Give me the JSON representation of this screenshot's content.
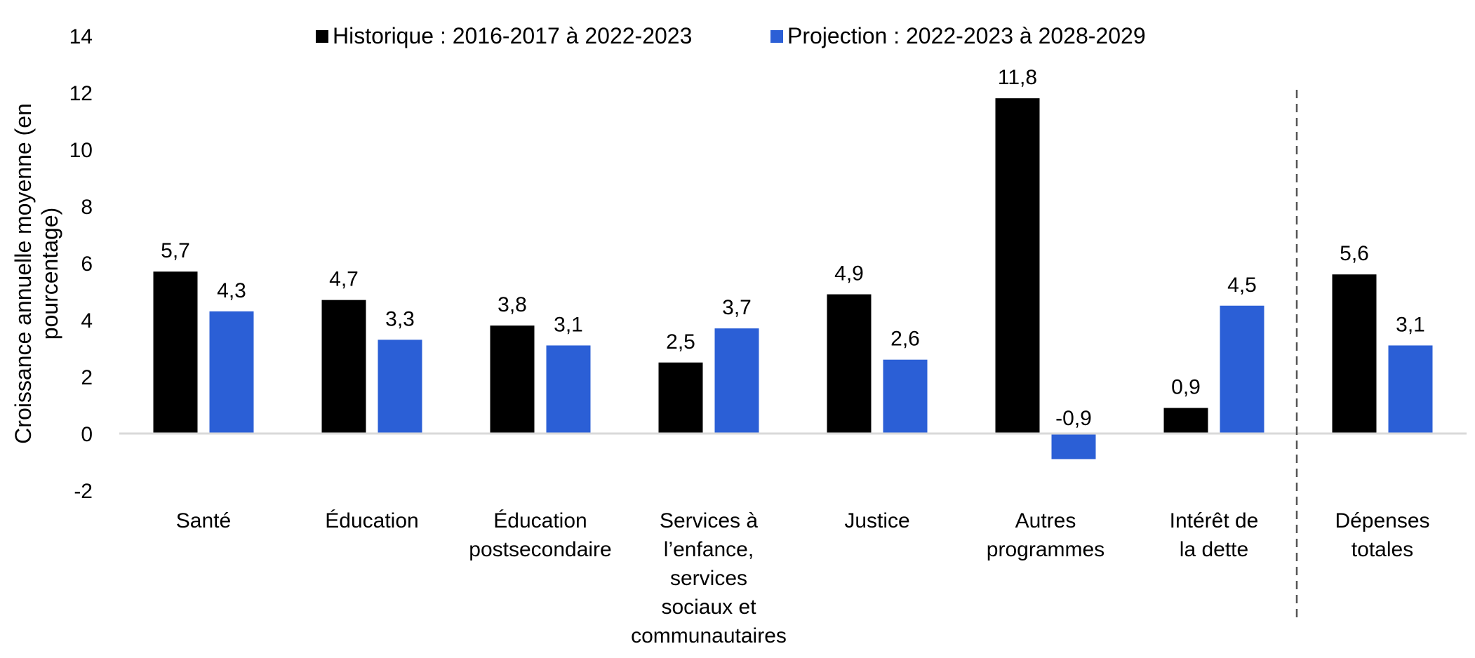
{
  "chart_data": {
    "type": "bar",
    "ylabel_lines": [
      "Croissance annuelle moyenne (en",
      "pourcentage)"
    ],
    "ylim": [
      -2,
      14
    ],
    "yticks": [
      "-2",
      "0",
      "2",
      "4",
      "6",
      "8",
      "10",
      "12",
      "14"
    ],
    "categories": [
      [
        "Santé"
      ],
      [
        "Éducation"
      ],
      [
        "Éducation",
        "postsecondaire"
      ],
      [
        "Services à",
        "l’enfance,",
        "services",
        "sociaux et",
        "communautaires"
      ],
      [
        "Justice"
      ],
      [
        "Autres",
        "programmes"
      ],
      [
        "Intérêt de",
        "la dette"
      ],
      [
        "Dépenses",
        "totales"
      ]
    ],
    "series": [
      {
        "name": "Historique : 2016-2017 à 2022-2023",
        "color": "#000000",
        "values": [
          5.7,
          4.7,
          3.8,
          2.5,
          4.9,
          11.8,
          0.9,
          5.6
        ],
        "labels": [
          "5,7",
          "4,7",
          "3,8",
          "2,5",
          "4,9",
          "11,8",
          "0,9",
          "5,6"
        ]
      },
      {
        "name": "Projection : 2022-2023 à 2028-2029",
        "color": "#2B5FD6",
        "values": [
          4.3,
          3.3,
          3.1,
          3.7,
          2.6,
          -0.9,
          4.5,
          3.1
        ],
        "labels": [
          "4,3",
          "3,3",
          "3,1",
          "3,7",
          "2,6",
          "-0,9",
          "4,5",
          "3,1"
        ]
      }
    ],
    "negative_color": "#E8342A",
    "grid": false,
    "legend_position": "top",
    "separator_before_last_category": true
  }
}
